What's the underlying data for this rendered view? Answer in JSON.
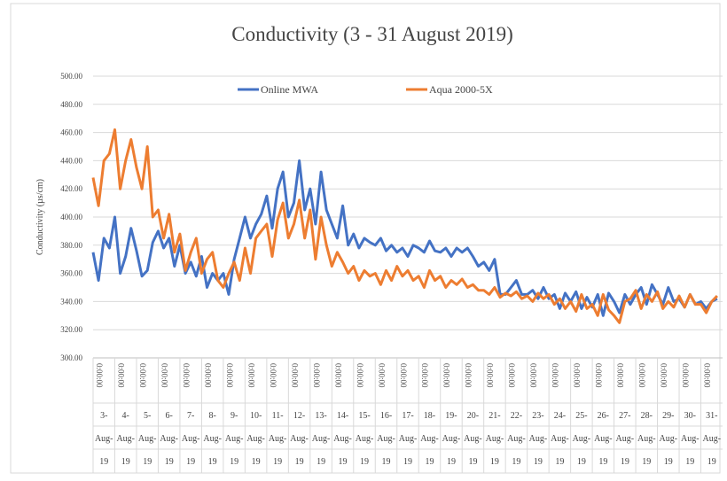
{
  "chart_data": {
    "type": "line",
    "title": "Conductivity (3 - 31 August 2019)",
    "ylabel": "Conductivity (µs/cm)",
    "time_label": "0:00:00",
    "categories": [
      "3-Aug-19",
      "4-Aug-19",
      "5-Aug-19",
      "6-Aug-19",
      "7-Aug-19",
      "8-Aug-19",
      "9-Aug-19",
      "10-Aug-19",
      "11-Aug-19",
      "12-Aug-19",
      "13-Aug-19",
      "14-Aug-19",
      "15-Aug-19",
      "16-Aug-19",
      "17-Aug-19",
      "18-Aug-19",
      "19-Aug-19",
      "20-Aug-19",
      "21-Aug-19",
      "22-Aug-19",
      "23-Aug-19",
      "24-Aug-19",
      "25-Aug-19",
      "26-Aug-19",
      "27-Aug-19",
      "28-Aug-19",
      "29-Aug-19",
      "30-Aug-19",
      "31-Aug-19"
    ],
    "series": [
      {
        "name": "Online MWA",
        "color": "#4472c4",
        "values": [
          [
            375,
            355,
            385,
            378
          ],
          [
            400,
            360,
            372,
            392
          ],
          [
            376,
            358,
            362,
            382
          ],
          [
            390,
            378,
            385,
            365
          ],
          [
            380,
            360,
            368,
            358
          ],
          [
            372,
            350,
            360,
            355
          ],
          [
            360,
            345,
            370,
            385
          ],
          [
            400,
            385,
            395,
            402
          ],
          [
            415,
            392,
            420,
            432
          ],
          [
            400,
            410,
            440,
            405
          ],
          [
            420,
            395,
            432,
            405
          ],
          [
            395,
            385,
            408,
            380
          ],
          [
            388,
            378,
            385,
            382
          ],
          [
            380,
            385,
            376,
            380
          ],
          [
            375,
            378,
            372,
            380
          ],
          [
            378,
            375,
            383,
            376
          ],
          [
            375,
            378,
            372,
            378
          ],
          [
            375,
            378,
            372,
            365
          ],
          [
            368,
            362,
            370,
            345
          ],
          [
            345,
            350,
            355,
            345
          ],
          [
            345,
            348,
            342,
            350
          ],
          [
            342,
            345,
            335,
            346
          ],
          [
            340,
            347,
            335,
            343
          ],
          [
            336,
            345,
            330,
            346
          ],
          [
            340,
            332,
            345,
            338
          ],
          [
            345,
            350,
            338,
            352
          ],
          [
            345,
            338,
            350,
            340
          ],
          [
            342,
            336,
            345,
            338
          ],
          [
            340,
            335,
            340,
            342
          ]
        ]
      },
      {
        "name": "Aqua 2000-5X",
        "color": "#ed7d31",
        "values": [
          [
            428,
            408,
            440,
            445
          ],
          [
            462,
            420,
            440,
            455
          ],
          [
            435,
            420,
            450,
            400
          ],
          [
            405,
            385,
            402,
            375
          ],
          [
            388,
            362,
            375,
            385
          ],
          [
            360,
            370,
            375,
            355
          ],
          [
            350,
            360,
            368,
            355
          ],
          [
            378,
            360,
            385,
            390
          ],
          [
            395,
            372,
            398,
            410
          ],
          [
            385,
            395,
            412,
            385
          ],
          [
            405,
            370,
            400,
            380
          ],
          [
            365,
            375,
            368,
            360
          ],
          [
            365,
            355,
            362,
            358
          ],
          [
            360,
            352,
            362,
            355
          ],
          [
            365,
            358,
            362,
            355
          ],
          [
            358,
            350,
            362,
            355
          ],
          [
            358,
            350,
            355,
            352
          ],
          [
            356,
            350,
            352,
            348
          ],
          [
            348,
            345,
            350,
            343
          ],
          [
            346,
            344,
            347,
            342
          ],
          [
            344,
            340,
            346,
            342
          ],
          [
            345,
            338,
            342,
            335
          ],
          [
            340,
            333,
            345,
            335
          ],
          [
            338,
            330,
            345,
            334
          ],
          [
            330,
            325,
            340,
            342
          ],
          [
            348,
            335,
            345,
            340
          ],
          [
            347,
            335,
            340,
            336
          ],
          [
            344,
            336,
            345,
            338
          ],
          [
            338,
            332,
            340,
            344
          ]
        ]
      }
    ],
    "ylim": [
      300,
      500
    ],
    "yticks": [
      {
        "value": 300,
        "label": "300.00"
      },
      {
        "value": 320,
        "label": "320.00"
      },
      {
        "value": 340,
        "label": "340.00"
      },
      {
        "value": 360,
        "label": "360.00"
      },
      {
        "value": 380,
        "label": "380.00"
      },
      {
        "value": 400,
        "label": "400.00"
      },
      {
        "value": 420,
        "label": "420.00"
      },
      {
        "value": 440,
        "label": "440.00"
      },
      {
        "value": 460,
        "label": "460.00"
      },
      {
        "value": 480,
        "label": "480.00"
      },
      {
        "value": 500,
        "label": "500.00"
      }
    ],
    "grid": true,
    "legend": "top"
  }
}
